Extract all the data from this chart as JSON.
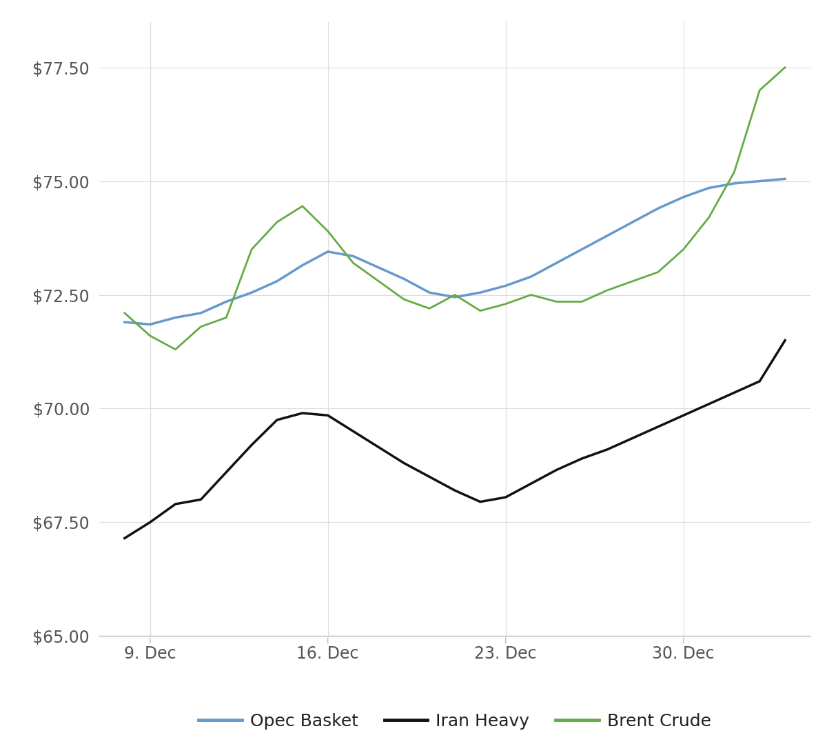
{
  "background_color": "#ffffff",
  "plot_bg_color": "#ffffff",
  "ylim": [
    65.0,
    78.5
  ],
  "yticks": [
    65.0,
    67.5,
    70.0,
    72.5,
    75.0,
    77.5
  ],
  "ytick_labels": [
    "$65.00",
    "$67.50",
    "$70.00",
    "$72.50",
    "$75.00",
    "$77.50"
  ],
  "xtick_labels": [
    "9. Dec",
    "16. Dec",
    "23. Dec",
    "30. Dec"
  ],
  "xtick_positions": [
    5,
    12,
    19,
    26
  ],
  "xlim": [
    3,
    31
  ],
  "opec_basket": {
    "x": [
      4,
      5,
      6,
      7,
      8,
      9,
      10,
      11,
      12,
      13,
      14,
      15,
      16,
      17,
      18,
      19,
      20,
      21,
      22,
      23,
      24,
      25,
      26,
      27,
      28,
      29,
      30
    ],
    "y": [
      71.9,
      71.85,
      72.0,
      72.1,
      72.35,
      72.55,
      72.8,
      73.15,
      73.45,
      73.35,
      73.1,
      72.85,
      72.55,
      72.45,
      72.55,
      72.7,
      72.9,
      73.2,
      73.5,
      73.8,
      74.1,
      74.4,
      74.65,
      74.85,
      74.95,
      75.0,
      75.05
    ],
    "color": "#6699cc",
    "label": "Opec Basket",
    "linewidth": 2.5
  },
  "iran_heavy": {
    "x": [
      4,
      5,
      6,
      7,
      8,
      9,
      10,
      11,
      12,
      13,
      14,
      15,
      16,
      17,
      18,
      19,
      20,
      21,
      22,
      23,
      24,
      25,
      26,
      27,
      28,
      29,
      30
    ],
    "y": [
      67.15,
      67.5,
      67.9,
      68.0,
      68.6,
      69.2,
      69.75,
      69.9,
      69.85,
      69.5,
      69.15,
      68.8,
      68.5,
      68.2,
      67.95,
      68.05,
      68.35,
      68.65,
      68.9,
      69.1,
      69.35,
      69.6,
      69.85,
      70.1,
      70.35,
      70.6,
      71.5
    ],
    "color": "#111111",
    "label": "Iran Heavy",
    "linewidth": 2.5
  },
  "brent_crude": {
    "x": [
      4,
      5,
      6,
      7,
      8,
      9,
      10,
      11,
      12,
      13,
      14,
      15,
      16,
      17,
      18,
      19,
      20,
      21,
      22,
      23,
      24,
      25,
      26,
      27,
      28,
      29,
      30
    ],
    "y": [
      72.1,
      71.6,
      71.3,
      71.8,
      72.0,
      73.5,
      74.1,
      74.45,
      73.9,
      73.2,
      72.8,
      72.4,
      72.2,
      72.5,
      72.15,
      72.3,
      72.5,
      72.35,
      72.35,
      72.6,
      72.8,
      73.0,
      73.5,
      74.2,
      75.2,
      77.0,
      77.5
    ],
    "color": "#66aa44",
    "label": "Brent Crude",
    "linewidth": 2.0
  },
  "grid_color": "#dddddd",
  "legend_fontsize": 18,
  "tick_fontsize": 17,
  "tick_color": "#555555"
}
